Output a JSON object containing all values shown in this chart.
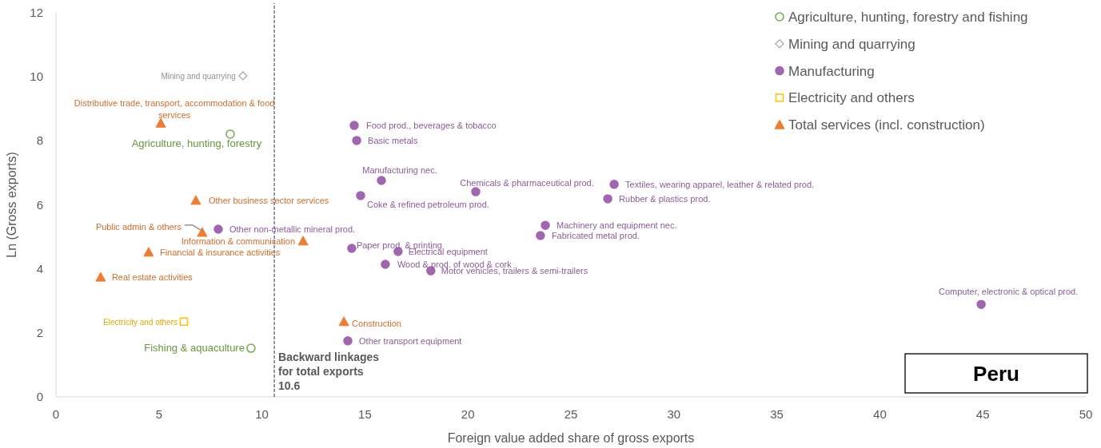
{
  "chart_data": {
    "type": "scatter",
    "xlabel": "Foreign value added share of gross exports",
    "ylabel": "Ln (Gross exports)",
    "xlim": [
      0,
      50
    ],
    "xticks": [
      0,
      5,
      10,
      15,
      20,
      25,
      30,
      35,
      40,
      45,
      50
    ],
    "ylim": [
      0,
      12
    ],
    "yticks": [
      0,
      2,
      4,
      6,
      8,
      10,
      12
    ],
    "grid": false,
    "legend": "top right",
    "series": [
      {
        "name": "Agriculture, hunting, forestry and fishing",
        "color": "#70ad47",
        "marker": "circle",
        "x": [
          8.46,
          9.47
        ],
        "values": [
          8.21,
          1.52
        ]
      },
      {
        "name": "Mining and quarrying",
        "color": "#a5a5a5",
        "marker": "diamond",
        "x": [
          9.08
        ],
        "values": [
          10.03
        ]
      },
      {
        "name": "Manufacturing",
        "color": "#a066b0",
        "marker": "circle",
        "x": [
          14.48,
          14.6,
          15.8,
          14.79,
          20.38,
          27.1,
          26.79,
          23.76,
          23.52,
          7.88,
          14.36,
          16.61,
          15.99,
          18.2,
          14.17,
          44.92
        ],
        "values": [
          8.48,
          8.01,
          6.76,
          6.29,
          6.41,
          6.64,
          6.19,
          5.36,
          5.04,
          5.24,
          4.64,
          4.54,
          4.14,
          3.94,
          1.75,
          2.89
        ]
      },
      {
        "name": "Electricity and others",
        "color": "#ffc000",
        "marker": "square",
        "x": [
          6.21
        ],
        "values": [
          2.35
        ]
      },
      {
        "name": "Total services (incl. construction)",
        "color": "#ed7d31",
        "marker": "triangle",
        "x": [
          5.09,
          6.79,
          7.1,
          12.0,
          4.5,
          2.17,
          13.98
        ],
        "values": [
          8.55,
          6.14,
          5.14,
          4.87,
          4.52,
          3.74,
          2.35
        ]
      }
    ],
    "ref_lines": [
      {
        "axis": "x",
        "value": 10.6,
        "label": "Backward linkages for total exports 10.6",
        "color": "#44546a",
        "line_style": "dashed"
      }
    ],
    "annotations": [
      {
        "text": "Agriculture, hunting, forestry",
        "x": 8.46,
        "y": 8.21
      },
      {
        "text": "Fishing & aquaculture",
        "x": 9.47,
        "y": 1.52
      },
      {
        "text": "Mining and quarrying",
        "x": 9.08,
        "y": 10.03
      },
      {
        "text": "Electricity and others",
        "x": 6.21,
        "y": 2.35
      },
      {
        "text": "Distributive trade, transport, accommodation & food services",
        "x": 5.09,
        "y": 8.55
      },
      {
        "text": "Other business sector services",
        "x": 6.79,
        "y": 6.14
      },
      {
        "text": "Public admin & others",
        "x": 7.1,
        "y": 5.14
      },
      {
        "text": "Information & communication",
        "x": 12.0,
        "y": 4.87
      },
      {
        "text": "Financial & insurance activities",
        "x": 4.5,
        "y": 4.52
      },
      {
        "text": "Real estate activities",
        "x": 2.17,
        "y": 3.74
      },
      {
        "text": "Construction",
        "x": 13.98,
        "y": 2.35
      },
      {
        "text": "Food prod., beverages & tobacco",
        "x": 14.48,
        "y": 8.48
      },
      {
        "text": "Basic metals",
        "x": 14.6,
        "y": 8.01
      },
      {
        "text": "Manufacturing nec.",
        "x": 15.8,
        "y": 6.76
      },
      {
        "text": "Coke & refined petroleum prod.",
        "x": 14.79,
        "y": 6.29
      },
      {
        "text": "Chemicals & pharmaceutical prod.",
        "x": 20.38,
        "y": 6.41
      },
      {
        "text": "Textiles, wearing apparel, leather & related prod.",
        "x": 27.1,
        "y": 6.64
      },
      {
        "text": "Rubber & plastics prod.",
        "x": 26.79,
        "y": 6.19
      },
      {
        "text": "Machinery and equipment nec.",
        "x": 23.76,
        "y": 5.36
      },
      {
        "text": "Fabricated metal prod.",
        "x": 23.52,
        "y": 5.04
      },
      {
        "text": "Other non-metallic mineral prod.",
        "x": 7.88,
        "y": 5.24
      },
      {
        "text": "Paper prod. & printing",
        "x": 14.36,
        "y": 4.64
      },
      {
        "text": "Electrical equipment",
        "x": 16.61,
        "y": 4.54
      },
      {
        "text": "Wood & prod. of wood & cork",
        "x": 15.99,
        "y": 4.14
      },
      {
        "text": "Motor vehicles, trailers & semi-trailers",
        "x": 18.2,
        "y": 3.94
      },
      {
        "text": "Other transport equipment",
        "x": 14.17,
        "y": 1.75
      },
      {
        "text": "Computer, electronic & optical prod.",
        "x": 44.92,
        "y": 2.89
      },
      "Peru"
    ]
  }
}
